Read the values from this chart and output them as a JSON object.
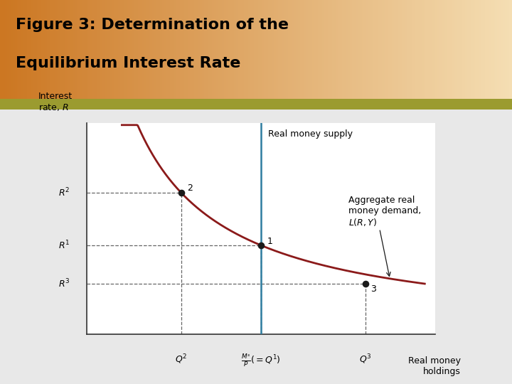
{
  "title_line1": "Figure 3: Determination of the",
  "title_line2": "Equilibrium Interest Rate",
  "title_bg_color_left": "#CC7722",
  "title_bg_color_right": "#F5DEB3",
  "separator_color": "#9B9B30",
  "plot_bg_color": "#FFFFFF",
  "fig_bg_color": "#E8E8E8",
  "curve_color": "#8B1A1A",
  "supply_line_color": "#2E7DA0",
  "dashed_color": "#666666",
  "point_color": "#1A1A1A",
  "arrow_color": "#1A1A1A",
  "title_fontsize": 16,
  "axis_label_fontsize": 9,
  "annotation_fontsize": 9,
  "R1": 0.42,
  "R2": 0.67,
  "R3": 0.24,
  "Q1": 0.5,
  "Q2": 0.27,
  "Q3": 0.8,
  "xlim": [
    0,
    1.0
  ],
  "ylim": [
    0,
    1.0
  ],
  "corner_color": "#C8A040"
}
